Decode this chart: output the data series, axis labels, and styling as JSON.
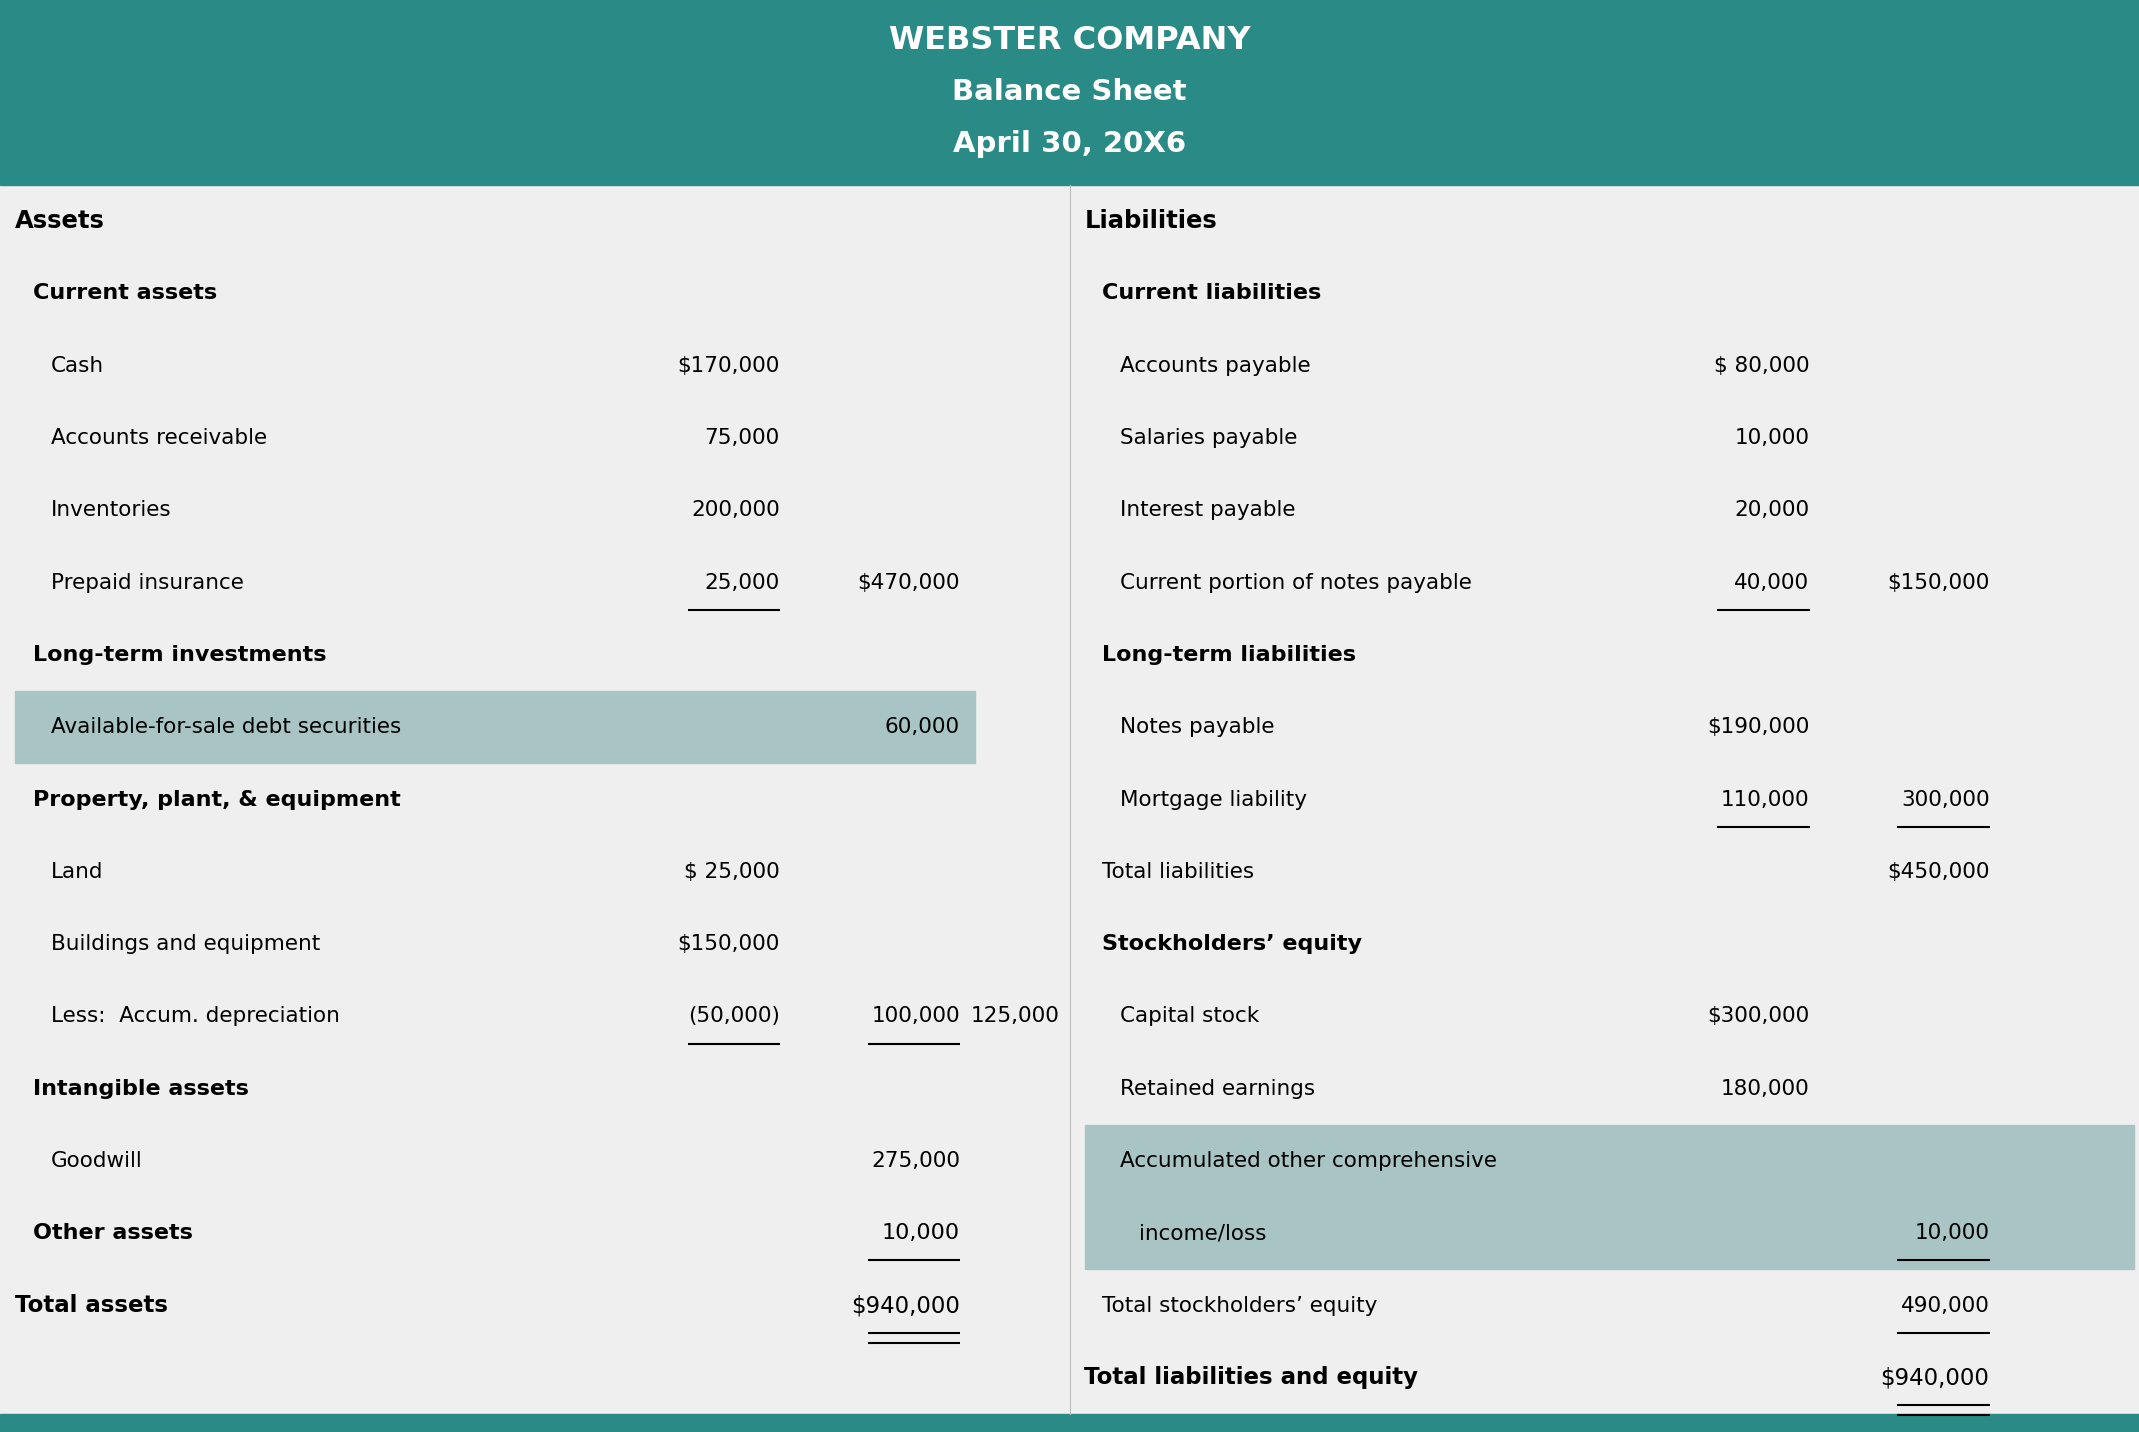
{
  "title_line1": "WEBSTER COMPANY",
  "title_line2": "Balance Sheet",
  "title_line3": "April 30, 20X6",
  "header_bg": "#2a8a85",
  "header_text_color": "#ffffff",
  "body_bg": "#efefef",
  "highlight_color": "#a8c4c4",
  "footer_bg": "#2a8a85",
  "text_color": "#000000",
  "left_col": [
    {
      "text": "Assets",
      "style": "bold",
      "indent": 0,
      "col1": "",
      "col2": "",
      "col3": "",
      "ul1": false,
      "ul2": false,
      "ul3": false,
      "hl": false
    },
    {
      "text": "Current assets",
      "style": "bold_small",
      "indent": 1,
      "col1": "",
      "col2": "",
      "col3": "",
      "ul1": false,
      "ul2": false,
      "ul3": false,
      "hl": false
    },
    {
      "text": "Cash",
      "style": "normal",
      "indent": 2,
      "col1": "$170,000",
      "col2": "",
      "col3": "",
      "ul1": false,
      "ul2": false,
      "ul3": false,
      "hl": false
    },
    {
      "text": "Accounts receivable",
      "style": "normal",
      "indent": 2,
      "col1": "75,000",
      "col2": "",
      "col3": "",
      "ul1": false,
      "ul2": false,
      "ul3": false,
      "hl": false
    },
    {
      "text": "Inventories",
      "style": "normal",
      "indent": 2,
      "col1": "200,000",
      "col2": "",
      "col3": "",
      "ul1": false,
      "ul2": false,
      "ul3": false,
      "hl": false
    },
    {
      "text": "Prepaid insurance",
      "style": "normal",
      "indent": 2,
      "col1": "25,000",
      "col2": "$470,000",
      "col3": "",
      "ul1": true,
      "ul2": false,
      "ul3": false,
      "hl": false
    },
    {
      "text": "Long-term investments",
      "style": "bold_small",
      "indent": 1,
      "col1": "",
      "col2": "",
      "col3": "",
      "ul1": false,
      "ul2": false,
      "ul3": false,
      "hl": false
    },
    {
      "text": "Available-for-sale debt securities",
      "style": "normal",
      "indent": 2,
      "col1": "",
      "col2": "60,000",
      "col3": "",
      "ul1": false,
      "ul2": false,
      "ul3": false,
      "hl": true
    },
    {
      "text": "Property, plant, & equipment",
      "style": "bold_small",
      "indent": 1,
      "col1": "",
      "col2": "",
      "col3": "",
      "ul1": false,
      "ul2": false,
      "ul3": false,
      "hl": false
    },
    {
      "text": "Land",
      "style": "normal",
      "indent": 2,
      "col1": "$ 25,000",
      "col2": "",
      "col3": "",
      "ul1": false,
      "ul2": false,
      "ul3": false,
      "hl": false
    },
    {
      "text": "Buildings and equipment",
      "style": "normal",
      "indent": 2,
      "col1": "$150,000",
      "col2": "",
      "col3": "",
      "ul1": false,
      "ul2": false,
      "ul3": false,
      "hl": false
    },
    {
      "text": "Less:  Accum. depreciation",
      "style": "normal",
      "indent": 2,
      "col1": "(50,000)",
      "col2": "100,000",
      "col3": "125,000",
      "ul1": true,
      "ul2": true,
      "ul3": false,
      "hl": false
    },
    {
      "text": "Intangible assets",
      "style": "bold_small",
      "indent": 1,
      "col1": "",
      "col2": "",
      "col3": "",
      "ul1": false,
      "ul2": false,
      "ul3": false,
      "hl": false
    },
    {
      "text": "Goodwill",
      "style": "normal",
      "indent": 2,
      "col1": "",
      "col2": "275,000",
      "col3": "",
      "ul1": false,
      "ul2": false,
      "ul3": false,
      "hl": false
    },
    {
      "text": "Other assets",
      "style": "bold_small",
      "indent": 1,
      "col1": "",
      "col2": "10,000",
      "col3": "",
      "ul1": false,
      "ul2": true,
      "ul3": false,
      "hl": false
    },
    {
      "text": "Total assets",
      "style": "bold_total",
      "indent": 0,
      "col1": "",
      "col2": "$940,000",
      "col3": "",
      "ul1": false,
      "ul2": true,
      "ul3": false,
      "hl": false,
      "double": true
    }
  ],
  "right_col": [
    {
      "text": "Liabilities",
      "style": "bold",
      "indent": 0,
      "col1": "",
      "col2": "",
      "col3": "",
      "ul1": false,
      "ul2": false,
      "ul3": false,
      "hl": false
    },
    {
      "text": "Current liabilities",
      "style": "bold_small",
      "indent": 1,
      "col1": "",
      "col2": "",
      "col3": "",
      "ul1": false,
      "ul2": false,
      "ul3": false,
      "hl": false
    },
    {
      "text": "Accounts payable",
      "style": "normal",
      "indent": 2,
      "col1": "$ 80,000",
      "col2": "",
      "col3": "",
      "ul1": false,
      "ul2": false,
      "ul3": false,
      "hl": false
    },
    {
      "text": "Salaries payable",
      "style": "normal",
      "indent": 2,
      "col1": "10,000",
      "col2": "",
      "col3": "",
      "ul1": false,
      "ul2": false,
      "ul3": false,
      "hl": false
    },
    {
      "text": "Interest payable",
      "style": "normal",
      "indent": 2,
      "col1": "20,000",
      "col2": "",
      "col3": "",
      "ul1": false,
      "ul2": false,
      "ul3": false,
      "hl": false
    },
    {
      "text": "Current portion of notes payable",
      "style": "normal",
      "indent": 2,
      "col1": "40,000",
      "col2": "$150,000",
      "col3": "",
      "ul1": true,
      "ul2": false,
      "ul3": false,
      "hl": false
    },
    {
      "text": "Long-term liabilities",
      "style": "bold_small",
      "indent": 1,
      "col1": "",
      "col2": "",
      "col3": "",
      "ul1": false,
      "ul2": false,
      "ul3": false,
      "hl": false
    },
    {
      "text": "Notes payable",
      "style": "normal",
      "indent": 2,
      "col1": "$190,000",
      "col2": "",
      "col3": "",
      "ul1": false,
      "ul2": false,
      "ul3": false,
      "hl": false
    },
    {
      "text": "Mortgage liability",
      "style": "normal",
      "indent": 2,
      "col1": "110,000",
      "col2": "300,000",
      "col3": "",
      "ul1": true,
      "ul2": true,
      "ul3": false,
      "hl": false
    },
    {
      "text": "Total liabilities",
      "style": "normal",
      "indent": 1,
      "col1": "",
      "col2": "$450,000",
      "col3": "",
      "ul1": false,
      "ul2": false,
      "ul3": false,
      "hl": false
    },
    {
      "text": "Stockholders’ equity",
      "style": "bold_small",
      "indent": 1,
      "col1": "",
      "col2": "",
      "col3": "",
      "ul1": false,
      "ul2": false,
      "ul3": false,
      "hl": false
    },
    {
      "text": "Capital stock",
      "style": "normal",
      "indent": 2,
      "col1": "$300,000",
      "col2": "",
      "col3": "",
      "ul1": false,
      "ul2": false,
      "ul3": false,
      "hl": false
    },
    {
      "text": "Retained earnings",
      "style": "normal",
      "indent": 2,
      "col1": "180,000",
      "col2": "",
      "col3": "",
      "ul1": false,
      "ul2": false,
      "ul3": false,
      "hl": false
    },
    {
      "text": "Accumulated other comprehensive",
      "style": "normal",
      "indent": 2,
      "col1": "",
      "col2": "",
      "col3": "",
      "ul1": false,
      "ul2": false,
      "ul3": false,
      "hl": true
    },
    {
      "text": "income/loss",
      "style": "normal",
      "indent": 3,
      "col1": "",
      "col2": "10,000",
      "col3": "",
      "ul1": false,
      "ul2": true,
      "ul3": false,
      "hl": true
    },
    {
      "text": "Total stockholders’ equity",
      "style": "normal",
      "indent": 1,
      "col1": "",
      "col2": "490,000",
      "col3": "",
      "ul1": false,
      "ul2": true,
      "ul3": false,
      "hl": false
    },
    {
      "text": "Total liabilities and equity",
      "style": "bold_total",
      "indent": 0,
      "col1": "",
      "col2": "$940,000",
      "col3": "",
      "ul1": false,
      "ul2": true,
      "ul3": false,
      "hl": false,
      "double": true
    }
  ]
}
